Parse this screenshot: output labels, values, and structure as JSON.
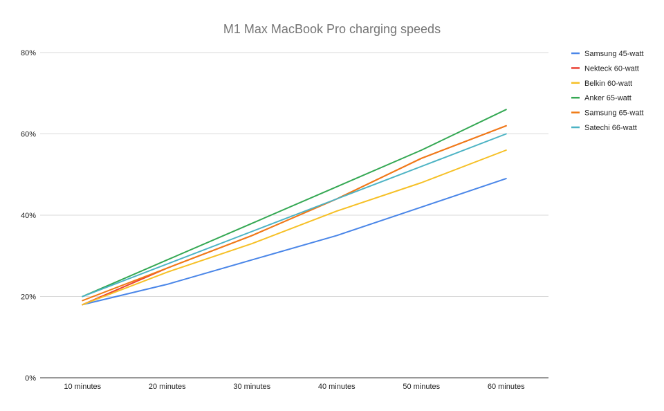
{
  "chart_data": {
    "type": "line",
    "title": "M1 Max MacBook Pro charging speeds",
    "xlabel": "",
    "ylabel": "",
    "categories": [
      "10 minutes",
      "20 minutes",
      "30 minutes",
      "40 minutes",
      "50 minutes",
      "60 minutes"
    ],
    "ylim": [
      0,
      80
    ],
    "yticks": [
      0,
      20,
      40,
      60,
      80
    ],
    "ytick_labels": [
      "0%",
      "20%",
      "40%",
      "60%",
      "80%"
    ],
    "grid": true,
    "legend_position": "right",
    "series": [
      {
        "name": "Samsung 45-watt",
        "color": "#4a86e8",
        "values": [
          18,
          23,
          29,
          35,
          42,
          49
        ]
      },
      {
        "name": "Nekteck 60-watt",
        "color": "#ea4335",
        "values": [
          18,
          27,
          35,
          44,
          54,
          62
        ]
      },
      {
        "name": "Belkin 60-watt",
        "color": "#f6c026",
        "values": [
          18,
          26,
          33,
          41,
          48,
          56
        ]
      },
      {
        "name": "Anker 65-watt",
        "color": "#34a853",
        "values": [
          20,
          29,
          38,
          47,
          56,
          66
        ]
      },
      {
        "name": "Samsung 65-watt",
        "color": "#f07b16",
        "values": [
          19,
          27,
          35,
          44,
          54,
          62
        ]
      },
      {
        "name": "Satechi 66-watt",
        "color": "#4cb3c4",
        "values": [
          20,
          28,
          36,
          44,
          52,
          60
        ]
      }
    ]
  }
}
